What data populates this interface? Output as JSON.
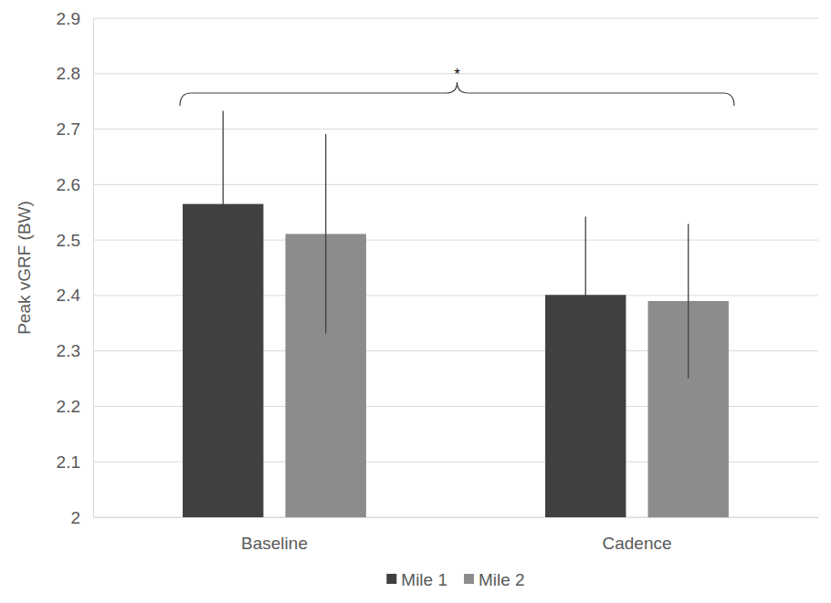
{
  "chart_data": {
    "type": "bar",
    "y_label": "Peak vGRF (BW)",
    "categories": [
      "Baseline",
      "Cadence"
    ],
    "series": [
      {
        "name": "Mile 1",
        "color": "#404040",
        "values": [
          2.565,
          2.401
        ],
        "errors": [
          0.168,
          0.141
        ]
      },
      {
        "name": "Mile 2",
        "color": "#8c8c8c",
        "values": [
          2.511,
          2.39
        ],
        "errors": [
          0.18,
          0.139
        ]
      }
    ],
    "ylim": [
      2,
      2.9
    ],
    "yticks": [
      2,
      2.1,
      2.2,
      2.3,
      2.4,
      2.5,
      2.6,
      2.7,
      2.8,
      2.9
    ],
    "grid": true,
    "legend": "bottom",
    "annotations": [
      "*"
    ]
  }
}
